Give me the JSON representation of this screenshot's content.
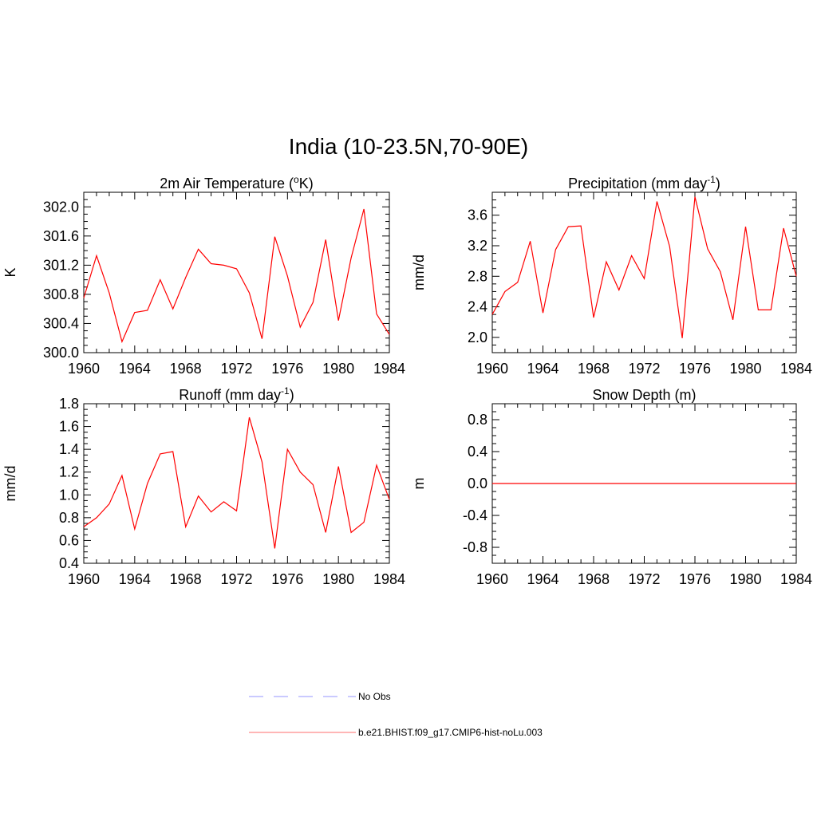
{
  "title": "India (10-23.5N,70-90E)",
  "line_color": "#ff0000",
  "legend": [
    {
      "label": "No Obs",
      "style": "dashed",
      "color": "#aaaaff"
    },
    {
      "label": "b.e21.BHIST.f09_g17.CMIP6-hist-noLu.003",
      "style": "solid",
      "color": "#ff8a8a"
    }
  ],
  "chart_data": [
    {
      "type": "line",
      "title": "2m Air Temperature (°K)",
      "title_parts": [
        "2m Air Temperature (",
        "o",
        "K)"
      ],
      "ylabel": "K",
      "x": [
        1960,
        1961,
        1962,
        1963,
        1964,
        1965,
        1966,
        1967,
        1968,
        1969,
        1970,
        1971,
        1972,
        1973,
        1974,
        1975,
        1976,
        1977,
        1978,
        1979,
        1980,
        1981,
        1982,
        1983,
        1984
      ],
      "values": [
        300.75,
        301.33,
        300.82,
        300.15,
        300.55,
        300.58,
        301.0,
        300.6,
        301.03,
        301.42,
        301.22,
        301.2,
        301.15,
        300.82,
        300.19,
        301.59,
        301.05,
        300.35,
        300.69,
        301.55,
        300.44,
        301.3,
        301.97,
        300.53,
        300.25
      ],
      "xlim": [
        1960,
        1984
      ],
      "ylim": [
        300.0,
        302.2
      ],
      "xticks": [
        "1960",
        "1964",
        "1968",
        "1972",
        "1976",
        "1980",
        "1984"
      ],
      "yticks": [
        "300.0",
        "300.4",
        "300.8",
        "301.2",
        "301.6",
        "302.0"
      ]
    },
    {
      "type": "line",
      "title": "Precipitation (mm day-1)",
      "title_parts": [
        "Precipitation (mm day",
        "-1",
        ")"
      ],
      "ylabel": "mm/d",
      "x": [
        1960,
        1961,
        1962,
        1963,
        1964,
        1965,
        1966,
        1967,
        1968,
        1969,
        1970,
        1971,
        1972,
        1973,
        1974,
        1975,
        1976,
        1977,
        1978,
        1979,
        1980,
        1981,
        1982,
        1983,
        1984
      ],
      "values": [
        2.3,
        2.6,
        2.72,
        3.26,
        2.32,
        3.15,
        3.45,
        3.46,
        2.26,
        2.99,
        2.62,
        3.07,
        2.77,
        3.78,
        3.19,
        1.99,
        3.84,
        3.16,
        2.86,
        2.23,
        3.45,
        2.36,
        2.36,
        3.43,
        2.8
      ],
      "xlim": [
        1960,
        1984
      ],
      "ylim": [
        1.8,
        3.9
      ],
      "xticks": [
        "1960",
        "1964",
        "1968",
        "1972",
        "1976",
        "1980",
        "1984"
      ],
      "yticks": [
        "2.0",
        "2.4",
        "2.8",
        "3.2",
        "3.6"
      ]
    },
    {
      "type": "line",
      "title": "Runoff (mm day-1)",
      "title_parts": [
        "Runoff (mm day",
        "-1",
        ")"
      ],
      "ylabel": "mm/d",
      "x": [
        1960,
        1961,
        1962,
        1963,
        1964,
        1965,
        1966,
        1967,
        1968,
        1969,
        1970,
        1971,
        1972,
        1973,
        1974,
        1975,
        1976,
        1977,
        1978,
        1979,
        1980,
        1981,
        1982,
        1983,
        1984
      ],
      "values": [
        0.72,
        0.8,
        0.92,
        1.17,
        0.7,
        1.1,
        1.36,
        1.38,
        0.72,
        0.99,
        0.85,
        0.94,
        0.86,
        1.68,
        1.29,
        0.53,
        1.4,
        1.2,
        1.09,
        0.67,
        1.25,
        0.67,
        0.76,
        1.26,
        0.96
      ],
      "xlim": [
        1960,
        1984
      ],
      "ylim": [
        0.4,
        1.8
      ],
      "xticks": [
        "1960",
        "1964",
        "1968",
        "1972",
        "1976",
        "1980",
        "1984"
      ],
      "yticks": [
        "0.4",
        "0.6",
        "0.8",
        "1.0",
        "1.2",
        "1.4",
        "1.6",
        "1.8"
      ]
    },
    {
      "type": "line",
      "title": "Snow Depth (m)",
      "title_parts": [
        "Snow Depth (m)",
        "",
        ""
      ],
      "ylabel": "m",
      "x": [
        1960,
        1984
      ],
      "values": [
        0.0,
        0.0
      ],
      "xlim": [
        1960,
        1984
      ],
      "ylim": [
        -1.0,
        1.0
      ],
      "xticks": [
        "1960",
        "1964",
        "1968",
        "1972",
        "1976",
        "1980",
        "1984"
      ],
      "yticks": [
        "-0.8",
        "-0.4",
        "0.0",
        "0.4",
        "0.8"
      ]
    }
  ]
}
